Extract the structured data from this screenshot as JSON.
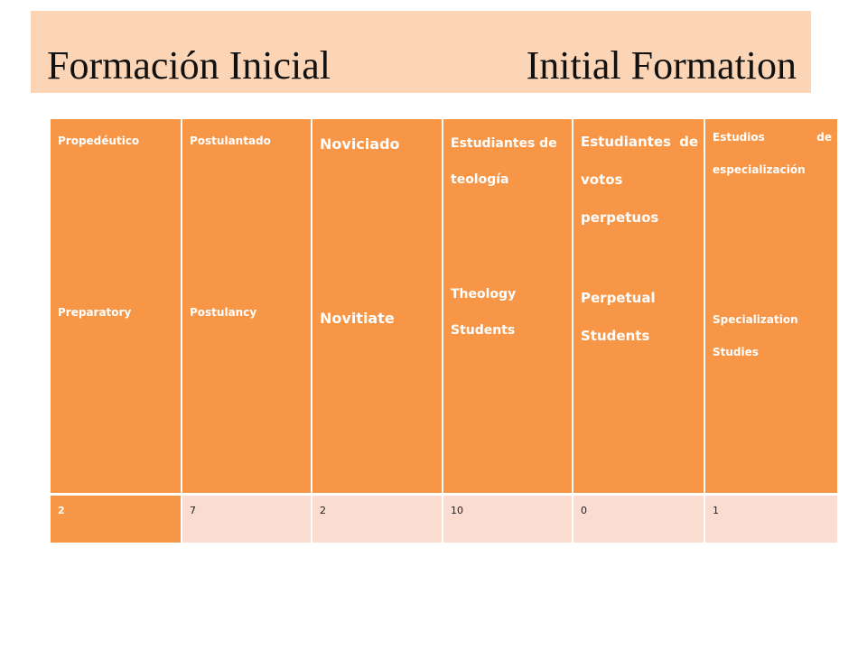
{
  "title": {
    "spanish": "Formación Inicial",
    "english": "Initial Formation"
  },
  "columns": [
    {
      "es": "Propedéutico",
      "en": "Preparatory",
      "value": "2"
    },
    {
      "es": "Postulantado",
      "en": "Postulancy",
      "value": "7"
    },
    {
      "es": "Noviciado",
      "en": "Novitiate",
      "value": "2"
    },
    {
      "es": "Estudiantes de teología",
      "en": "Theology Students",
      "value": "10"
    },
    {
      "es": "Estudiantes de votos perpetuos",
      "en": "Perpetual Students",
      "value": "0"
    },
    {
      "es": "Estudios de especialización",
      "en": "Specialization Studies",
      "value": "1"
    }
  ],
  "colors": {
    "title_bg": "#fbd5b5",
    "header_bg": "#f79646",
    "value_bg": "#fbdcd0"
  }
}
